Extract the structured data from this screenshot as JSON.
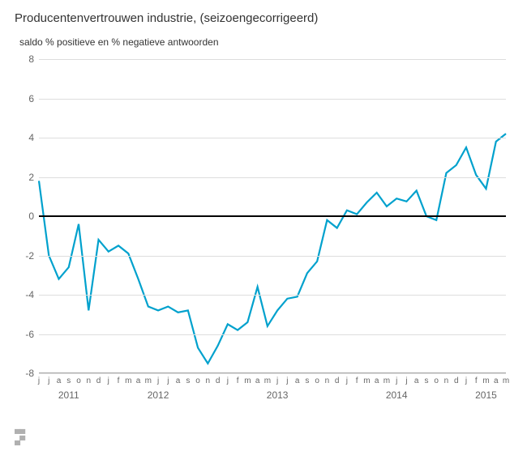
{
  "title": "Producentenvertrouwen industrie, (seizoengecorrigeerd)",
  "subtitle": "saldo % positieve en % negatieve antwoorden",
  "chart": {
    "type": "line",
    "ylim": [
      -8,
      8
    ],
    "ytick_step": 2,
    "yticks": [
      -8,
      -6,
      -4,
      -2,
      0,
      2,
      4,
      6,
      8
    ],
    "background_color": "#ffffff",
    "grid_color": "#dddddd",
    "zero_color": "#000000",
    "line_color": "#00a1cd",
    "line_width": 2.2,
    "axis_label_color": "#666666",
    "axis_label_fontsize": 12,
    "month_label_fontsize": 10,
    "months": [
      "j",
      "j",
      "a",
      "s",
      "o",
      "n",
      "d",
      "j",
      "f",
      "m",
      "a",
      "m",
      "j",
      "j",
      "a",
      "s",
      "o",
      "n",
      "d",
      "j",
      "f",
      "m",
      "a",
      "m",
      "j",
      "j",
      "a",
      "s",
      "o",
      "n",
      "d",
      "j",
      "f",
      "m",
      "a",
      "m",
      "j",
      "j",
      "a",
      "s",
      "o",
      "n",
      "d",
      "j",
      "f",
      "m",
      "a",
      "m"
    ],
    "years": [
      {
        "label": "2011",
        "center_index": 3
      },
      {
        "label": "2012",
        "center_index": 12
      },
      {
        "label": "2013",
        "center_index": 24
      },
      {
        "label": "2014",
        "center_index": 36
      },
      {
        "label": "2015",
        "center_index": 45
      }
    ],
    "values": [
      1.8,
      -2.0,
      -3.2,
      -2.6,
      -0.4,
      -4.8,
      -1.2,
      -1.8,
      -1.5,
      -1.9,
      -3.2,
      -4.6,
      -4.8,
      -4.6,
      -4.9,
      -4.8,
      -6.7,
      -7.5,
      -6.6,
      -5.5,
      -5.8,
      -5.4,
      -3.6,
      -5.6,
      -4.8,
      -4.2,
      -4.1,
      -2.9,
      -2.3,
      -0.2,
      -0.6,
      0.3,
      0.1,
      0.7,
      1.2,
      0.5,
      0.9,
      0.75,
      1.3,
      0.0,
      -0.2,
      2.2,
      2.6,
      3.5,
      2.1,
      1.4,
      3.8,
      4.2
    ]
  },
  "logo_text": "cbs"
}
